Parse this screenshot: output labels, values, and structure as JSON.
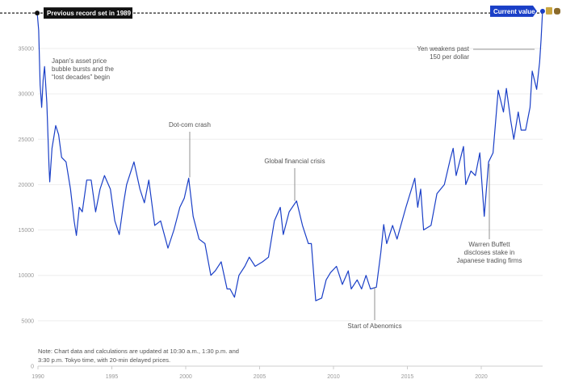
{
  "chart_data": {
    "type": "line",
    "title": "",
    "xlabel": "",
    "ylabel": "",
    "xlim": [
      1990,
      2024.2
    ],
    "ylim": [
      0,
      39500
    ],
    "grid": true,
    "x_ticks": [
      "1990",
      "1995",
      "2000",
      "2005",
      "2010",
      "2015",
      "2020"
    ],
    "y_ticks": [
      "0",
      "5000",
      "10000",
      "15000",
      "20000",
      "25000",
      "30000",
      "35000"
    ],
    "line_color": "#1a3fc7",
    "record_label": "Previous record set in 1989",
    "record_value": 38900,
    "current_label": "Current value",
    "current_value": 39100,
    "annotations": [
      {
        "text": [
          "Japan's asset price",
          "bubble bursts and the",
          "“lost decades” begin"
        ],
        "x": 1990.4,
        "y": 33000
      },
      {
        "text": [
          "Dot-com crash"
        ],
        "x": 2000.2,
        "y": 20800
      },
      {
        "text": [
          "Global financial crisis"
        ],
        "x": 2007.5,
        "y": 18200
      },
      {
        "text": [
          "Start of Abenomics"
        ],
        "x": 2012.9,
        "y": 8700
      },
      {
        "text": [
          "Warren Buffett",
          "discloses stake in",
          "Japanese trading firms"
        ],
        "x": 2020.6,
        "y": 23000
      },
      {
        "text": [
          "Yen weakens past",
          "150 per dollar"
        ],
        "x": 2023.8,
        "y": 33700
      }
    ],
    "note": [
      "Note: Chart data and calculations are updated at 10:30 a.m., 1:30 p.m. and",
      "3:30 p.m. Tokyo time, with 20-min delayed prices."
    ],
    "points": [
      [
        1989.95,
        38900
      ],
      [
        1990.05,
        37000
      ],
      [
        1990.15,
        31000
      ],
      [
        1990.25,
        28500
      ],
      [
        1990.35,
        31500
      ],
      [
        1990.45,
        33000
      ],
      [
        1990.6,
        29000
      ],
      [
        1990.75,
        22000
      ],
      [
        1990.8,
        20300
      ],
      [
        1990.95,
        24000
      ],
      [
        1991.2,
        26500
      ],
      [
        1991.4,
        25500
      ],
      [
        1991.6,
        23000
      ],
      [
        1991.9,
        22500
      ],
      [
        1992.2,
        19500
      ],
      [
        1992.45,
        16000
      ],
      [
        1992.6,
        14400
      ],
      [
        1992.8,
        17500
      ],
      [
        1993.0,
        17000
      ],
      [
        1993.3,
        20500
      ],
      [
        1993.6,
        20500
      ],
      [
        1993.9,
        17000
      ],
      [
        1994.2,
        19500
      ],
      [
        1994.5,
        21000
      ],
      [
        1994.9,
        19500
      ],
      [
        1995.2,
        16000
      ],
      [
        1995.5,
        14500
      ],
      [
        1995.8,
        18000
      ],
      [
        1996.0,
        20000
      ],
      [
        1996.5,
        22500
      ],
      [
        1996.9,
        19500
      ],
      [
        1997.2,
        18000
      ],
      [
        1997.5,
        20500
      ],
      [
        1997.9,
        15500
      ],
      [
        1998.3,
        16000
      ],
      [
        1998.8,
        13000
      ],
      [
        1999.2,
        15000
      ],
      [
        1999.6,
        17500
      ],
      [
        1999.9,
        18500
      ],
      [
        2000.2,
        20700
      ],
      [
        2000.5,
        16500
      ],
      [
        2000.9,
        14000
      ],
      [
        2001.3,
        13500
      ],
      [
        2001.7,
        10000
      ],
      [
        2002.0,
        10500
      ],
      [
        2002.4,
        11500
      ],
      [
        2002.8,
        8500
      ],
      [
        2003.0,
        8500
      ],
      [
        2003.3,
        7600
      ],
      [
        2003.6,
        10000
      ],
      [
        2004.0,
        11000
      ],
      [
        2004.3,
        12000
      ],
      [
        2004.7,
        11000
      ],
      [
        2005.2,
        11500
      ],
      [
        2005.6,
        12000
      ],
      [
        2006.0,
        16000
      ],
      [
        2006.4,
        17500
      ],
      [
        2006.6,
        14500
      ],
      [
        2007.0,
        17000
      ],
      [
        2007.5,
        18200
      ],
      [
        2007.9,
        15500
      ],
      [
        2008.3,
        13500
      ],
      [
        2008.5,
        13500
      ],
      [
        2008.8,
        7200
      ],
      [
        2009.2,
        7500
      ],
      [
        2009.5,
        9500
      ],
      [
        2009.8,
        10300
      ],
      [
        2010.2,
        11000
      ],
      [
        2010.6,
        9000
      ],
      [
        2011.0,
        10500
      ],
      [
        2011.2,
        8500
      ],
      [
        2011.6,
        9500
      ],
      [
        2011.9,
        8500
      ],
      [
        2012.2,
        10000
      ],
      [
        2012.5,
        8500
      ],
      [
        2012.9,
        8700
      ],
      [
        2013.2,
        12500
      ],
      [
        2013.4,
        15600
      ],
      [
        2013.6,
        13500
      ],
      [
        2014.0,
        15500
      ],
      [
        2014.3,
        14000
      ],
      [
        2014.9,
        17500
      ],
      [
        2015.5,
        20700
      ],
      [
        2015.7,
        17500
      ],
      [
        2015.9,
        19500
      ],
      [
        2016.1,
        15000
      ],
      [
        2016.6,
        15500
      ],
      [
        2017.0,
        19000
      ],
      [
        2017.5,
        20000
      ],
      [
        2017.9,
        22800
      ],
      [
        2018.1,
        24000
      ],
      [
        2018.3,
        21000
      ],
      [
        2018.8,
        24200
      ],
      [
        2018.95,
        20000
      ],
      [
        2019.3,
        21500
      ],
      [
        2019.6,
        21000
      ],
      [
        2019.9,
        23500
      ],
      [
        2020.2,
        16500
      ],
      [
        2020.5,
        22500
      ],
      [
        2020.8,
        23500
      ],
      [
        2021.0,
        27500
      ],
      [
        2021.15,
        30400
      ],
      [
        2021.5,
        28000
      ],
      [
        2021.7,
        30600
      ],
      [
        2022.0,
        27000
      ],
      [
        2022.2,
        25000
      ],
      [
        2022.5,
        28000
      ],
      [
        2022.7,
        26000
      ],
      [
        2023.0,
        26000
      ],
      [
        2023.3,
        28500
      ],
      [
        2023.45,
        32500
      ],
      [
        2023.6,
        31500
      ],
      [
        2023.75,
        30500
      ],
      [
        2023.95,
        33500
      ],
      [
        2024.05,
        36000
      ],
      [
        2024.15,
        39100
      ]
    ]
  }
}
